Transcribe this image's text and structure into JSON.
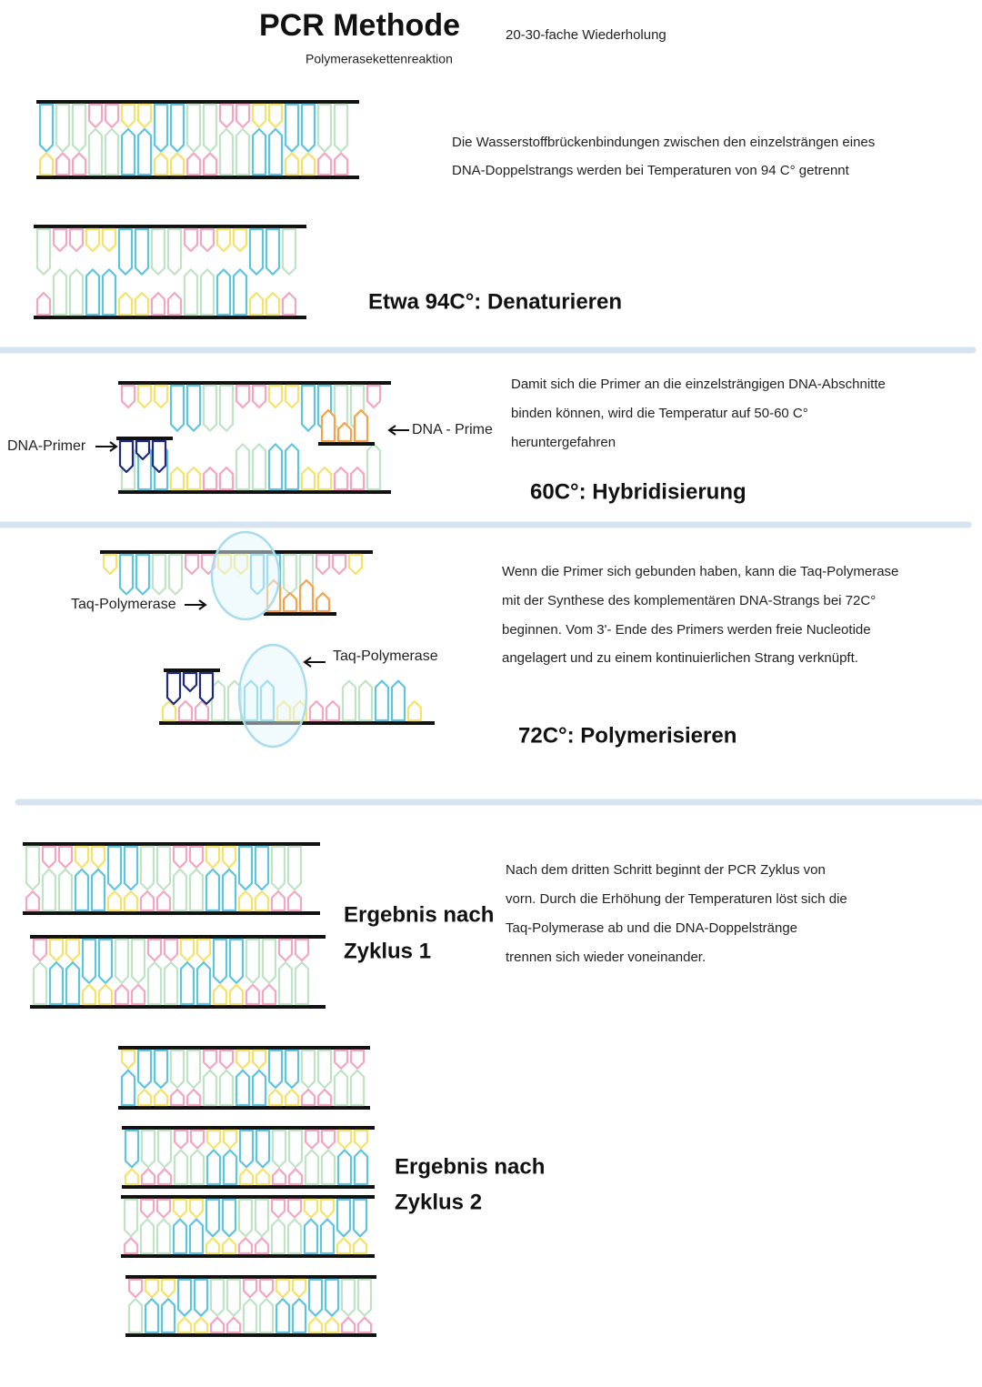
{
  "header": {
    "title": "PCR Methode",
    "subtitle": "Polymerasekettenreaktion",
    "note": "20-30-fache Wiederholung"
  },
  "steps": [
    {
      "description": [
        "Die Wasserstoffbrückenbindungen zwischen den einzelsträngen eines",
        "DNA-Doppelstrangs werden bei Temperaturen von 94 C° getrennt"
      ],
      "heading": "Etwa 94C°: Denaturieren"
    },
    {
      "description": [
        "Damit sich die Primer an die einzelsträngigen DNA-Abschnitte",
        "binden können, wird die Temperatur auf 50-60 C°",
        "heruntergefahren"
      ],
      "heading": "60C°: Hybridisierung",
      "labels": [
        "DNA-Primer",
        "DNA - Prime"
      ]
    },
    {
      "description": [
        "Wenn die Primer sich gebunden haben, kann die Taq-Polymerase",
        "mit der Synthese des komplementären DNA-Strangs bei 72C°",
        "beginnen. Vom 3'- Ende des Primers werden freie Nucleotide",
        "angelagert und zu einem kontinuierlichen Strang verknüpft."
      ],
      "heading": "72C°: Polymerisieren",
      "labels": [
        "Taq-Polymerase",
        "Taq-Polymerase"
      ]
    },
    {
      "description": [
        "Nach dem dritten Schritt beginnt der PCR Zyklus von",
        "vorn. Durch die Erhöhung der Temperaturen löst sich die",
        "Taq-Polymerase ab und die DNA-Doppelstränge",
        "trennen sich wieder voneinander."
      ],
      "heading": [
        "Ergebnis nach",
        "Zyklus 1"
      ]
    }
  ],
  "result": {
    "heading": [
      "Ergebnis nach",
      "Zyklus 2"
    ]
  }
}
